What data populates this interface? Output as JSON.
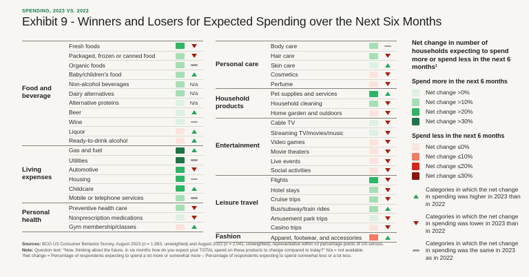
{
  "header": {
    "eyebrow": "SPENDING, 2023 VS. 2022",
    "title": "Exhibit 9 - Winners and Losers for Expected Spending over the Next Six Months"
  },
  "labels": {
    "na": "N/a"
  },
  "palette": {
    "g0": "#def1e2",
    "g10": "#a6dfb4",
    "g20": "#2fb566",
    "g30": "#20744a",
    "r0": "#fbe4e0",
    "r10": "#ef7c64",
    "r20": "#d6251b",
    "r30": "#8c140e",
    "trend_up": "#26a45c",
    "trend_down": "#a81d10",
    "trend_same": "#9d9d9d",
    "accent_green": "#15794e"
  },
  "chart_data": {
    "type": "table",
    "title": "Exhibit 9 - Winners and Losers for Expected Spending over the Next Six Months",
    "subtitle": "SPENDING, 2023 VS. 2022",
    "value_encoding": {
      "spend_more_levels": {
        "g0": ">0%",
        "g10": ">10%",
        "g20": ">20%",
        "g30": ">30%"
      },
      "spend_less_levels": {
        "r0": "≤0%",
        "r10": "≤10%",
        "r20": "≤20%",
        "r30": "≤30%"
      },
      "trend": {
        "up": "higher in 2023 than 2022",
        "down": "lower in 2023 than 2022",
        "same": "same in 2023 as 2022",
        "na": "not available"
      }
    },
    "columns": [
      {
        "sections": [
          {
            "label": "Food and beverage",
            "items": [
              {
                "label": "Fresh foods",
                "net_change": ">20%",
                "level": "g20",
                "trend": "down"
              },
              {
                "label": "Packaged, frozen or canned food",
                "net_change": ">10%",
                "level": "g10",
                "trend": "down"
              },
              {
                "label": "Organic foods",
                "net_change": ">10%",
                "level": "g10",
                "trend": "same"
              },
              {
                "label": "Baby/children's food",
                "net_change": ">10%",
                "level": "g10",
                "trend": "up"
              },
              {
                "label": "Non-alcohol beverages",
                "net_change": ">10%",
                "level": "g10",
                "trend": "na"
              },
              {
                "label": "Dairy alternatives",
                "net_change": ">10%",
                "level": "g10",
                "trend": "na"
              },
              {
                "label": "Alternative proteins",
                "net_change": ">0%",
                "level": "g0",
                "trend": "na"
              },
              {
                "label": "Beer",
                "net_change": ">0%",
                "level": "g0",
                "trend": "up"
              },
              {
                "label": "Wine",
                "net_change": ">0%",
                "level": "g0",
                "trend": "same"
              },
              {
                "label": "Liquor",
                "net_change": "≤0%",
                "level": "r0",
                "trend": "up"
              },
              {
                "label": "Ready-to-drink alcohol",
                "net_change": "≤0%",
                "level": "r0",
                "trend": "up"
              }
            ]
          },
          {
            "label": "Living expenses",
            "items": [
              {
                "label": "Gas and fuel",
                "net_change": ">30%",
                "level": "g30",
                "trend": "up"
              },
              {
                "label": "Utilities",
                "net_change": ">30%",
                "level": "g30",
                "trend": "same"
              },
              {
                "label": "Automotive",
                "net_change": ">20%",
                "level": "g20",
                "trend": "down"
              },
              {
                "label": "Housing",
                "net_change": ">20%",
                "level": "g20",
                "trend": "same"
              },
              {
                "label": "Childcare",
                "net_change": ">20%",
                "level": "g20",
                "trend": "up"
              },
              {
                "label": "Mobile or telephone services",
                "net_change": ">10%",
                "level": "g10",
                "trend": "same"
              }
            ]
          },
          {
            "label": "Personal health",
            "items": [
              {
                "label": "Preventive health care",
                "net_change": ">10%",
                "level": "g10",
                "trend": "down"
              },
              {
                "label": "Nonprescription medications",
                "net_change": ">0%",
                "level": "g0",
                "trend": "down"
              },
              {
                "label": "Gym membership/classes",
                "net_change": "≤0%",
                "level": "r0",
                "trend": "up"
              }
            ]
          }
        ]
      },
      {
        "sections": [
          {
            "label": "Personal care",
            "items": [
              {
                "label": "Body care",
                "net_change": ">10%",
                "level": "g10",
                "trend": "same"
              },
              {
                "label": "Hair care",
                "net_change": ">10%",
                "level": "g10",
                "trend": "down"
              },
              {
                "label": "Skin care",
                "net_change": ">0%",
                "level": "g0",
                "trend": "up"
              },
              {
                "label": "Cosmetics",
                "net_change": "≤0%",
                "level": "r0",
                "trend": "down"
              },
              {
                "label": "Perfume",
                "net_change": "≤0%",
                "level": "r0",
                "trend": "down"
              }
            ]
          },
          {
            "label": "Household products",
            "items": [
              {
                "label": "Pet supplies and services",
                "net_change": ">20%",
                "level": "g20",
                "trend": "up"
              },
              {
                "label": "Household cleaning",
                "net_change": ">10%",
                "level": "g10",
                "trend": "down"
              },
              {
                "label": "Home garden and outdoors",
                "net_change": "≤0%",
                "level": "r0",
                "trend": "down"
              }
            ]
          },
          {
            "label": "Entertainment",
            "items": [
              {
                "label": "Cable TV",
                "net_change": ">0%",
                "level": "g0",
                "trend": "down"
              },
              {
                "label": "Streaming TV/movies/music",
                "net_change": ">0%",
                "level": "g0",
                "trend": "down"
              },
              {
                "label": "Video games",
                "net_change": "≤0%",
                "level": "r0",
                "trend": "down"
              },
              {
                "label": "Movie theaters",
                "net_change": "≤0%",
                "level": "r0",
                "trend": "down"
              },
              {
                "label": "Live events",
                "net_change": "≤0%",
                "level": "r0",
                "trend": "down"
              },
              {
                "label": "Social activities",
                "net_change": "≤0%",
                "level": "r0",
                "trend": "down"
              }
            ]
          },
          {
            "label": "Leisure travel",
            "items": [
              {
                "label": "Flights",
                "net_change": ">20%",
                "level": "g20",
                "trend": "down"
              },
              {
                "label": "Hotel stays",
                "net_change": ">10%",
                "level": "g10",
                "trend": "down"
              },
              {
                "label": "Cruise trips",
                "net_change": ">10%",
                "level": "g10",
                "trend": "down"
              },
              {
                "label": "Bus/subway/train rides",
                "net_change": ">10%",
                "level": "g10",
                "trend": "up"
              },
              {
                "label": "Amusement park trips",
                "net_change": ">0%",
                "level": "g0",
                "trend": "down"
              },
              {
                "label": "Casino trips",
                "net_change": "≤0%",
                "level": "r0",
                "trend": "down"
              }
            ]
          },
          {
            "label": "Fashion",
            "items": [
              {
                "label": "Apparel, footwear, and accessories",
                "net_change": "≤10%",
                "level": "r10",
                "trend": "up"
              }
            ]
          }
        ]
      }
    ]
  },
  "legend": {
    "title": "Net change in number of households expecting to spend more or spend less in the next 6 months¹",
    "spend_more": {
      "title": "Spend more in the next 6 months",
      "items": [
        {
          "label": "Net change >0%",
          "level": "g0"
        },
        {
          "label": "Net change >10%",
          "level": "g10"
        },
        {
          "label": "Net change >20%",
          "level": "g20"
        },
        {
          "label": "Net change >30%",
          "level": "g30"
        }
      ]
    },
    "spend_less": {
      "title": "Spend less in the next 6 months",
      "items": [
        {
          "label": "Net change ≤0%",
          "level": "r0"
        },
        {
          "label": "Net change ≤10%",
          "level": "r10"
        },
        {
          "label": "Net change ≤20%",
          "level": "r20"
        },
        {
          "label": "Net change ≤30%",
          "level": "r30"
        }
      ]
    },
    "trends": [
      {
        "type": "up",
        "label": "Categories in which the net change in spending was higher in 2023 than in 2022"
      },
      {
        "type": "down",
        "label": "Categories in which the net change in spending was lower in 2023 than in 2022"
      },
      {
        "type": "same",
        "label": "Categories in which the net change in spending was the same in 2023 as in 2022"
      }
    ]
  },
  "footer": {
    "sources_label": "Sources:",
    "sources": " BCG US Consumer Behavior Survey, August 2023 (n = 1,993, unweighted) and August 2022 (n = 2,041, unweighted), representative within ±3 percentage points of US census.",
    "note_label": "Note:",
    "note": " Question text: “Now, thinking about the future, in six months how do you expect your TOTAL spend on these products to change compared to today?” N/a = not available.",
    "footnote": "¹Net change = Percentage of respondents expecting to spend a lot more or somewhat more – Percentage of respondents expecting to spend somewhat less or a lot less."
  }
}
